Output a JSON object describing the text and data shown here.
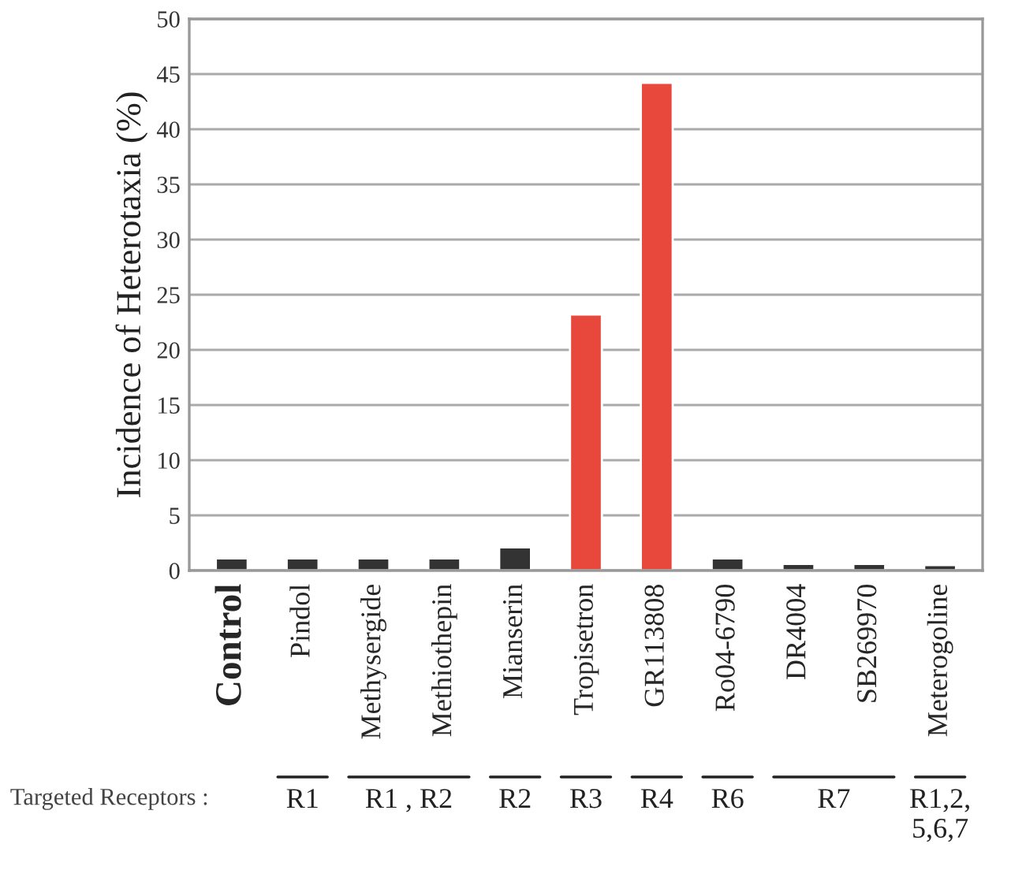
{
  "chart_data": {
    "type": "bar",
    "ylabel": "Incidence of Heterotaxia (%)",
    "categories": [
      "Control",
      "Pindol",
      "Methysergide",
      "Methiothepin",
      "Mianserin",
      "Tropisetron",
      "GR113808",
      "Ro04-6790",
      "DR4004",
      "SB269970",
      "Meterogoline"
    ],
    "values": [
      1.1,
      1.1,
      1.1,
      1.1,
      2.1,
      23.2,
      44.2,
      1.1,
      0.6,
      0.6,
      0.5
    ],
    "colors": [
      "#333333",
      "#333333",
      "#333333",
      "#333333",
      "#333333",
      "#e8473c",
      "#e8473c",
      "#333333",
      "#333333",
      "#333333",
      "#333333"
    ],
    "ylim": [
      0,
      50
    ],
    "yticks": [
      0,
      5,
      10,
      15,
      20,
      25,
      30,
      35,
      40,
      45,
      50
    ],
    "grid": "y",
    "annotations": [
      "Targeted Receptors :",
      "R1",
      "R1 , R2",
      "R2",
      "R3",
      "R4",
      "R6",
      "R7",
      "R1,2,\n5,6,7"
    ]
  }
}
